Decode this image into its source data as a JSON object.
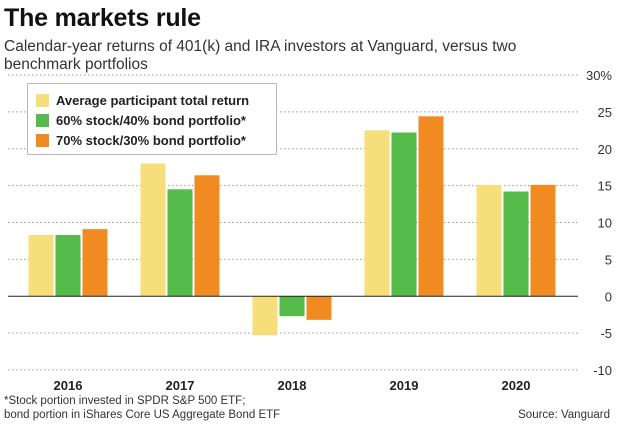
{
  "header": {
    "title": "The markets rule",
    "subtitle": "Calendar-year returns of 401(k) and IRA investors at Vanguard, versus two benchmark portfolios"
  },
  "footer": {
    "footnote_line1": "*Stock portion invested in SPDR S&P 500 ETF;",
    "footnote_line2": "bond portion in iShares Core US Aggregate Bond ETF",
    "source": "Source: Vanguard"
  },
  "chart_data": {
    "type": "bar",
    "title": "The markets rule",
    "subtitle": "Calendar-year returns of 401(k) and IRA investors at Vanguard, versus two benchmark portfolios",
    "xlabel": "",
    "ylabel": "",
    "categories": [
      "2016",
      "2017",
      "2018",
      "2019",
      "2020"
    ],
    "series": [
      {
        "name": "Average participant total return",
        "color": "#f6de7a",
        "values": [
          8.3,
          18.0,
          -5.3,
          22.5,
          15.1
        ]
      },
      {
        "name": "60% stock/40% bond portfolio*",
        "color": "#55bb4b",
        "values": [
          8.3,
          14.5,
          -2.7,
          22.2,
          14.2
        ]
      },
      {
        "name": "70% stock/30% bond portfolio*",
        "color": "#f28a22",
        "values": [
          9.1,
          16.4,
          -3.2,
          24.4,
          15.1
        ]
      }
    ],
    "ylim": [
      -10,
      30
    ],
    "yticks": [
      30,
      25,
      20,
      15,
      10,
      5,
      0,
      -5,
      -10
    ],
    "ytick_labels": [
      "30%",
      "25",
      "20",
      "15",
      "10",
      "5",
      "0",
      "-5",
      "-10"
    ],
    "grid": "horizontal dotted",
    "legend_position": "top-left",
    "axis_position": "right"
  }
}
